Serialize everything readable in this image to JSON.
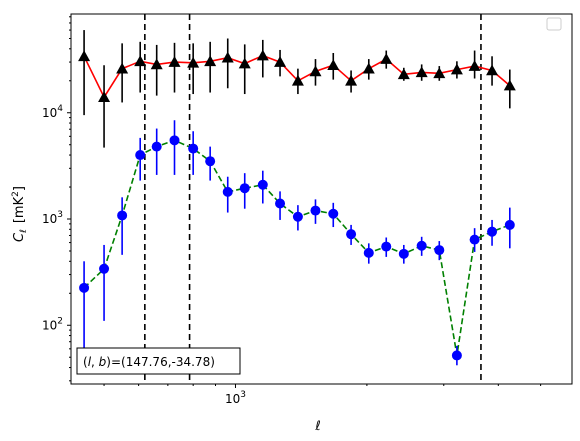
{
  "chart_data": {
    "type": "scatter",
    "title": "",
    "xlabel": "ℓ",
    "ylabel_main": "C",
    "ylabel_sub": "ℓ",
    "ylabel_unit_prefix": "[mK",
    "ylabel_unit_exp": "2",
    "ylabel_unit_suffix": "]",
    "xscale": "log",
    "yscale": "log",
    "xlim": [
      420,
      5900
    ],
    "ylim": [
      28,
      85000
    ],
    "x_tick_labels": [
      {
        "value": 1000,
        "base": "10",
        "exp": "3"
      }
    ],
    "y_tick_labels": [
      {
        "value": 100,
        "base": "10",
        "exp": "2"
      },
      {
        "value": 1000,
        "base": "10",
        "exp": "3"
      },
      {
        "value": 10000,
        "base": "10",
        "exp": "4"
      }
    ],
    "legend": "top-right (empty)",
    "grid": false,
    "annotation": "(l,b)=(147.76,-34.78)",
    "vlines": [
      620,
      785,
      3650
    ],
    "series": [
      {
        "marker": "triangle",
        "color": "#000000",
        "line_color": "#ff0000",
        "line_style": "solid",
        "x": [
          450,
          500,
          550,
          605,
          660,
          725,
          800,
          875,
          960,
          1050,
          1155,
          1265,
          1390,
          1525,
          1675,
          1840,
          2020,
          2215,
          2430,
          2670,
          2930,
          3215,
          3530,
          3870,
          4250,
          4665,
          5120
        ],
        "y": [
          34000,
          14000,
          26000,
          30500,
          28500,
          30000,
          29500,
          30500,
          33000,
          29000,
          34500,
          30000,
          20000,
          24500,
          28000,
          20000,
          26000,
          32000,
          23000,
          24000,
          23500,
          25500,
          27500,
          25000,
          18000,
          null,
          null
        ],
        "yerr_low": [
          24500,
          9300,
          13500,
          15000,
          14000,
          14500,
          14500,
          15000,
          16000,
          14000,
          13000,
          8000,
          5000,
          6500,
          7500,
          4500,
          5500,
          6000,
          3000,
          4000,
          3500,
          4500,
          6500,
          7000,
          7000,
          null,
          null
        ],
        "yerr_high": [
          26000,
          14000,
          19000,
          16000,
          15000,
          15500,
          15500,
          16000,
          17000,
          15000,
          14000,
          9000,
          6000,
          7500,
          8500,
          5000,
          6000,
          6500,
          3500,
          4500,
          4000,
          5000,
          11000,
          9000,
          7500,
          null,
          null
        ]
      },
      {
        "marker": "circle",
        "color": "#0000ff",
        "line_color": "#008000",
        "line_style": "dashed",
        "x": [
          450,
          500,
          550,
          605,
          660,
          725,
          800,
          875,
          960,
          1050,
          1155,
          1265,
          1390,
          1525,
          1675,
          1840,
          2020,
          2215,
          2430,
          2670,
          2930,
          3215,
          3530,
          3870,
          4250,
          4665,
          5120
        ],
        "y": [
          225,
          340,
          1080,
          4000,
          4800,
          5500,
          4600,
          3500,
          1800,
          1950,
          2100,
          1400,
          1050,
          1200,
          1120,
          720,
          480,
          550,
          470,
          560,
          510,
          52,
          640,
          760,
          880,
          null,
          null
        ],
        "yerr_low": [
          170,
          230,
          620,
          1700,
          2200,
          2900,
          2000,
          1200,
          650,
          700,
          700,
          420,
          270,
          300,
          280,
          150,
          100,
          110,
          90,
          110,
          100,
          10,
          150,
          200,
          350,
          null,
          null
        ],
        "yerr_high": [
          175,
          230,
          520,
          1800,
          2300,
          3000,
          2100,
          1300,
          700,
          750,
          750,
          420,
          300,
          330,
          300,
          160,
          110,
          120,
          100,
          120,
          110,
          12,
          180,
          220,
          400,
          null,
          null
        ]
      }
    ]
  }
}
